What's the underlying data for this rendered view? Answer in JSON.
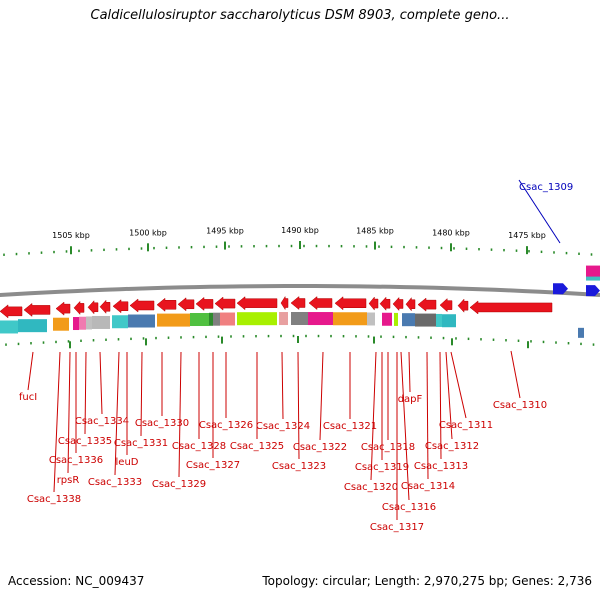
{
  "title": "Caldicellulosiruptor saccharolyticus DSM 8903, complete geno...",
  "footer": {
    "accession": "Accession: NC_009437",
    "summary": "Topology: circular; Length: 2,970,275 bp; Genes: 2,736"
  },
  "colors": {
    "forward_gene": "#1a1adb",
    "reverse_gene": "#e8141e",
    "label_red": "#cc0000",
    "label_blue": "#0000bb",
    "tick_green": "#2a8a2a",
    "backbone": "#8c8c8c"
  },
  "scale_labels": [
    "1505 kbp",
    "1500 kbp",
    "1495 kbp",
    "1490 kbp",
    "1485 kbp",
    "1480 kbp",
    "1475 kbp"
  ],
  "gene_labels": [
    {
      "text": "Csac_1309",
      "color": "blue"
    },
    {
      "text": "Csac_1310"
    },
    {
      "text": "Csac_1311"
    },
    {
      "text": "Csac_1312"
    },
    {
      "text": "Csac_1313"
    },
    {
      "text": "Csac_1314"
    },
    {
      "text": "dapF"
    },
    {
      "text": "Csac_1316"
    },
    {
      "text": "Csac_1317"
    },
    {
      "text": "Csac_1318"
    },
    {
      "text": "Csac_1319"
    },
    {
      "text": "Csac_1320"
    },
    {
      "text": "Csac_1321"
    },
    {
      "text": "Csac_1322"
    },
    {
      "text": "Csac_1323"
    },
    {
      "text": "Csac_1324"
    },
    {
      "text": "Csac_1325"
    },
    {
      "text": "Csac_1326"
    },
    {
      "text": "Csac_1327"
    },
    {
      "text": "Csac_1328"
    },
    {
      "text": "Csac_1329"
    },
    {
      "text": "Csac_1330"
    },
    {
      "text": "Csac_1331"
    },
    {
      "text": "leuD"
    },
    {
      "text": "Csac_1333"
    },
    {
      "text": "Csac_1334"
    },
    {
      "text": "Csac_1335"
    },
    {
      "text": "Csac_1336"
    },
    {
      "text": "rpsR"
    },
    {
      "text": "Csac_1338"
    },
    {
      "text": "fucI"
    }
  ]
}
